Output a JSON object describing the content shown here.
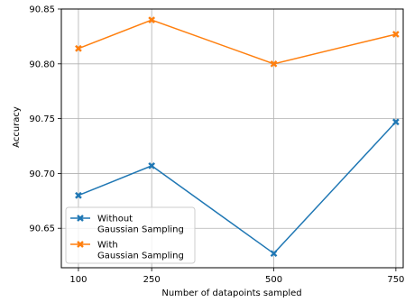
{
  "chart_data": {
    "type": "line",
    "title": "",
    "xlabel": "Number of datapoints sampled",
    "ylabel": "Accuracy",
    "x": [
      100,
      250,
      500,
      750
    ],
    "x_tick_labels": [
      "100",
      "250",
      "500",
      "750"
    ],
    "y_ticks": [
      90.65,
      90.7,
      90.75,
      90.8,
      90.85
    ],
    "y_tick_labels": [
      "90.65",
      "90.70",
      "90.75",
      "90.80",
      "90.85"
    ],
    "xlim": [
      65,
      765
    ],
    "ylim": [
      90.614,
      90.85
    ],
    "grid": true,
    "legend_position": "lower-left",
    "series": [
      {
        "name": "Without\nGaussian Sampling",
        "legend_lines": [
          "Without",
          "Gaussian Sampling"
        ],
        "color": "#1f77b4",
        "marker": "x",
        "values": [
          90.68,
          90.707,
          90.627,
          90.747
        ]
      },
      {
        "name": "With\nGaussian Sampling",
        "legend_lines": [
          "With",
          "Gaussian Sampling"
        ],
        "color": "#ff7f0e",
        "marker": "x",
        "values": [
          90.814,
          90.84,
          90.8,
          90.827
        ]
      }
    ]
  }
}
